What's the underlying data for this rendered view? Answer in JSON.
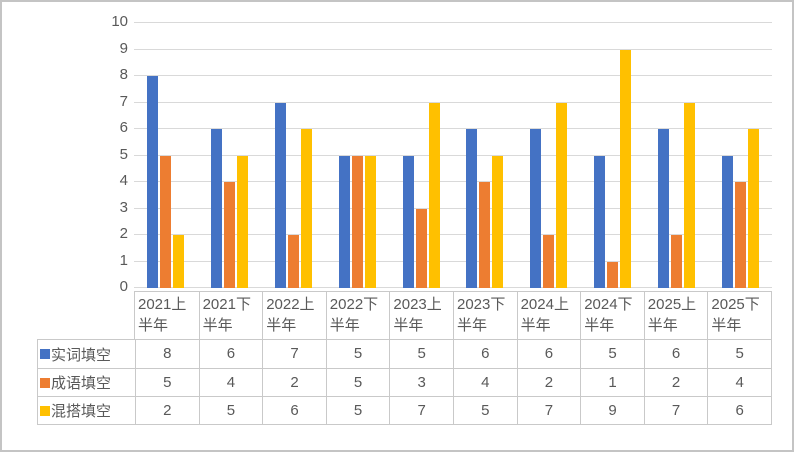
{
  "chart_data": {
    "type": "bar",
    "title": "",
    "xlabel": "",
    "ylabel": "",
    "categories": [
      "2021上半年",
      "2021下半年",
      "2022上半年",
      "2022下半年",
      "2023上半年",
      "2023下半年",
      "2024上半年",
      "2024下半年",
      "2025上半年",
      "2025下半年"
    ],
    "series": [
      {
        "name": "实词填空",
        "color": "#4472C4",
        "values": [
          8,
          6,
          7,
          5,
          5,
          6,
          6,
          5,
          6,
          5
        ]
      },
      {
        "name": "成语填空",
        "color": "#ED7D31",
        "values": [
          5,
          4,
          2,
          5,
          3,
          4,
          2,
          1,
          2,
          4
        ]
      },
      {
        "name": "混搭填空",
        "color": "#FFC000",
        "values": [
          2,
          5,
          6,
          5,
          7,
          5,
          7,
          9,
          7,
          6
        ]
      }
    ],
    "ylim": [
      0,
      10
    ],
    "ytick_step": 1,
    "yticks": [
      0,
      1,
      2,
      3,
      4,
      5,
      6,
      7,
      8,
      9,
      10
    ],
    "grid": true,
    "legend_position": "data-table-left",
    "data_table_shown": true
  },
  "colors": {
    "series_blue": "#4472C4",
    "series_orange": "#ED7D31",
    "series_yellow": "#FFC000",
    "grid_line": "#D9D9D9",
    "axis_text": "#595959",
    "table_text": "#595959",
    "table_border": "#C9C9C9",
    "frame_border": "#C4C4C4",
    "background": "#FFFFFF"
  }
}
